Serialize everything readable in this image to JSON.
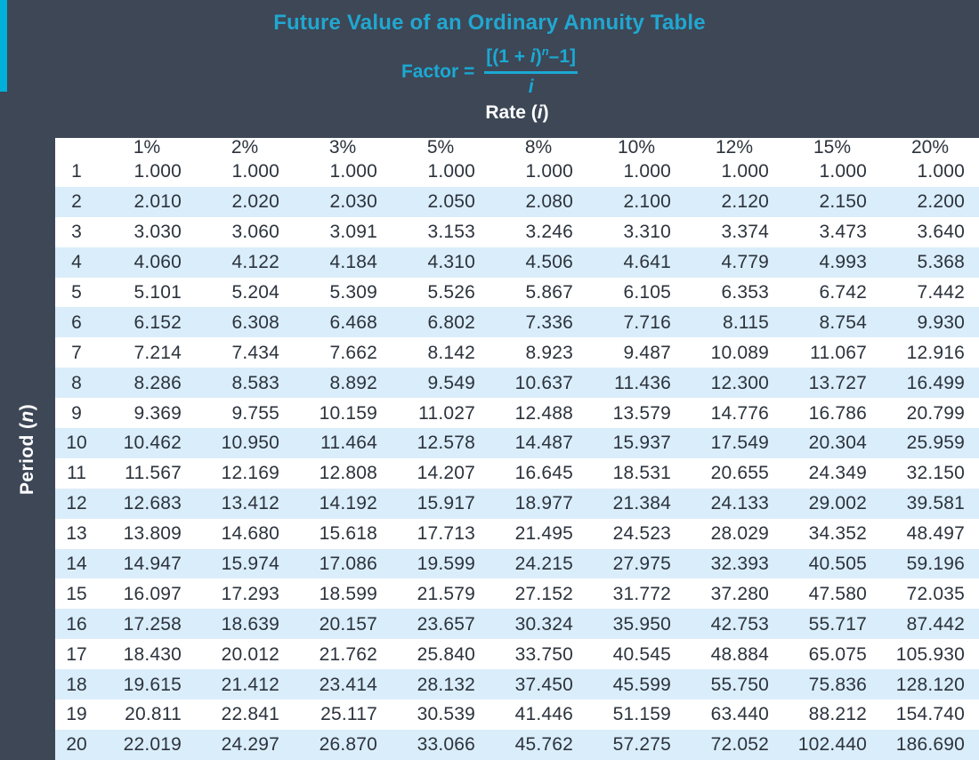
{
  "colors": {
    "background": "#3D4756",
    "accent_cyan": "#00B0D8",
    "title_cyan": "#21A7D0",
    "formula_cyan": "#1BA9D4",
    "stripe_blue": "#DAEDFA",
    "table_bg": "#FFFFFF",
    "text_dark": "#2C333D",
    "text_white": "#FFFFFF"
  },
  "header": {
    "title": "Future Value of an Ordinary Annuity Table",
    "formula": {
      "factor_label": "Factor =",
      "num_open": "[(1 + ",
      "num_i": "i",
      "num_close": ")",
      "num_exp": "n",
      "num_tail": "–1]",
      "denominator": "i"
    },
    "rate": {
      "pre": "Rate (",
      "var": "i",
      "post": ")"
    }
  },
  "sidebar": {
    "pre": "Period (",
    "var": "n",
    "post": ")"
  },
  "chart_data": {
    "type": "table",
    "title": "Future Value of an Ordinary Annuity Table",
    "row_axis_label": "Period (n)",
    "col_axis_label": "Rate (i)",
    "columns": [
      "1%",
      "2%",
      "3%",
      "5%",
      "8%",
      "10%",
      "12%",
      "15%",
      "20%"
    ],
    "periods": [
      1,
      2,
      3,
      4,
      5,
      6,
      7,
      8,
      9,
      10,
      11,
      12,
      13,
      14,
      15,
      16,
      17,
      18,
      19,
      20
    ],
    "rows": [
      [
        "1.000",
        "1.000",
        "1.000",
        "1.000",
        "1.000",
        "1.000",
        "1.000",
        "1.000",
        "1.000"
      ],
      [
        "2.010",
        "2.020",
        "2.030",
        "2.050",
        "2.080",
        "2.100",
        "2.120",
        "2.150",
        "2.200"
      ],
      [
        "3.030",
        "3.060",
        "3.091",
        "3.153",
        "3.246",
        "3.310",
        "3.374",
        "3.473",
        "3.640"
      ],
      [
        "4.060",
        "4.122",
        "4.184",
        "4.310",
        "4.506",
        "4.641",
        "4.779",
        "4.993",
        "5.368"
      ],
      [
        "5.101",
        "5.204",
        "5.309",
        "5.526",
        "5.867",
        "6.105",
        "6.353",
        "6.742",
        "7.442"
      ],
      [
        "6.152",
        "6.308",
        "6.468",
        "6.802",
        "7.336",
        "7.716",
        "8.115",
        "8.754",
        "9.930"
      ],
      [
        "7.214",
        "7.434",
        "7.662",
        "8.142",
        "8.923",
        "9.487",
        "10.089",
        "11.067",
        "12.916"
      ],
      [
        "8.286",
        "8.583",
        "8.892",
        "9.549",
        "10.637",
        "11.436",
        "12.300",
        "13.727",
        "16.499"
      ],
      [
        "9.369",
        "9.755",
        "10.159",
        "11.027",
        "12.488",
        "13.579",
        "14.776",
        "16.786",
        "20.799"
      ],
      [
        "10.462",
        "10.950",
        "11.464",
        "12.578",
        "14.487",
        "15.937",
        "17.549",
        "20.304",
        "25.959"
      ],
      [
        "11.567",
        "12.169",
        "12.808",
        "14.207",
        "16.645",
        "18.531",
        "20.655",
        "24.349",
        "32.150"
      ],
      [
        "12.683",
        "13.412",
        "14.192",
        "15.917",
        "18.977",
        "21.384",
        "24.133",
        "29.002",
        "39.581"
      ],
      [
        "13.809",
        "14.680",
        "15.618",
        "17.713",
        "21.495",
        "24.523",
        "28.029",
        "34.352",
        "48.497"
      ],
      [
        "14.947",
        "15.974",
        "17.086",
        "19.599",
        "24.215",
        "27.975",
        "32.393",
        "40.505",
        "59.196"
      ],
      [
        "16.097",
        "17.293",
        "18.599",
        "21.579",
        "27.152",
        "31.772",
        "37.280",
        "47.580",
        "72.035"
      ],
      [
        "17.258",
        "18.639",
        "20.157",
        "23.657",
        "30.324",
        "35.950",
        "42.753",
        "55.717",
        "87.442"
      ],
      [
        "18.430",
        "20.012",
        "21.762",
        "25.840",
        "33.750",
        "40.545",
        "48.884",
        "65.075",
        "105.930"
      ],
      [
        "19.615",
        "21.412",
        "23.414",
        "28.132",
        "37.450",
        "45.599",
        "55.750",
        "75.836",
        "128.120"
      ],
      [
        "20.811",
        "22.841",
        "25.117",
        "30.539",
        "41.446",
        "51.159",
        "63.440",
        "88.212",
        "154.740"
      ],
      [
        "22.019",
        "24.297",
        "26.870",
        "33.066",
        "45.762",
        "57.275",
        "72.052",
        "102.440",
        "186.690"
      ]
    ]
  }
}
